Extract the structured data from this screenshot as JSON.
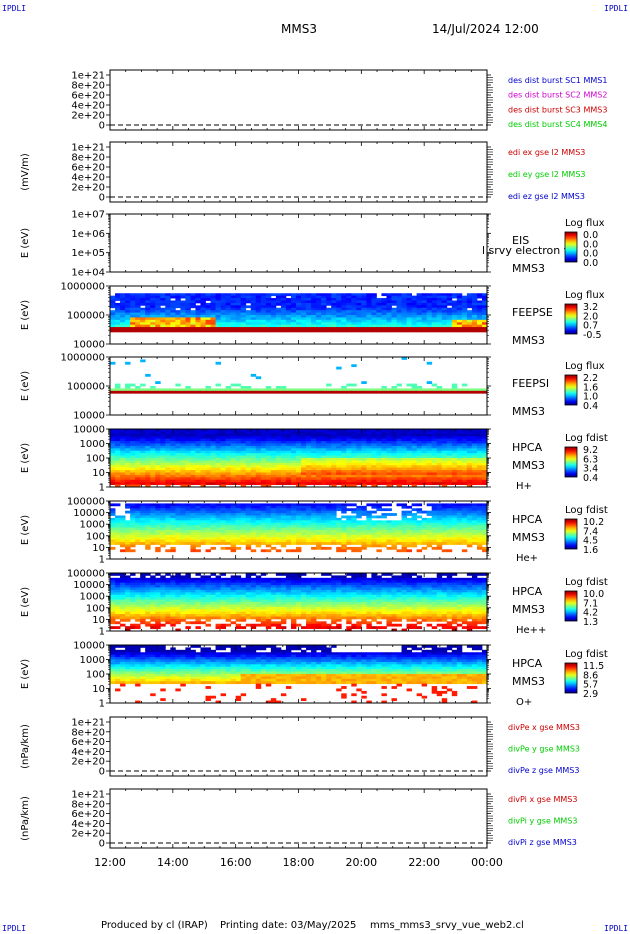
{
  "header": {
    "corner_labels": [
      "IPDLI",
      "IPDLI",
      "IPDLI",
      "IPDLI"
    ],
    "spacecraft": "MMS3",
    "datetime": "14/Jul/2024 12:00"
  },
  "footer": {
    "produced_by": "Produced by cl (IRAP)",
    "printing_date": "Printing date: 03/May/2025",
    "filename": "mms_mms3_srvy_vue_web2.cl"
  },
  "colors": {
    "blue": "#0000cc",
    "magenta": "#cc00cc",
    "red": "#cc0000",
    "green": "#00cc00"
  },
  "chart_data": {
    "type": "line",
    "x_ticks": [
      "12:00",
      "14:00",
      "16:00",
      "18:00",
      "20:00",
      "22:00",
      "00:00"
    ],
    "panels": [
      {
        "id": "des-dist",
        "type": "line",
        "ylabel": "",
        "yticks": [
          "1e+21",
          "8e+20",
          "6e+20",
          "4e+20",
          "2e+20",
          "0"
        ],
        "series": [
          {
            "name": "des dist burst SC1 MMS1",
            "color": "#0000cc"
          },
          {
            "name": "des dist burst SC2 MMS2",
            "color": "#cc00cc"
          },
          {
            "name": "des dist burst SC3 MMS3",
            "color": "#cc0000"
          },
          {
            "name": "des dist burst SC4 MMS4",
            "color": "#00cc00"
          }
        ]
      },
      {
        "id": "edi-e",
        "type": "line",
        "ylabel": "(mV/m)",
        "yticks": [
          "1e+21",
          "8e+20",
          "6e+20",
          "4e+20",
          "2e+20",
          "0"
        ],
        "series": [
          {
            "name": "edi ex gse l2 MMS3",
            "color": "#cc0000"
          },
          {
            "name": "edi ey gse l2 MMS3",
            "color": "#00cc00"
          },
          {
            "name": "edi ez gse l2 MMS3",
            "color": "#0000cc"
          }
        ]
      },
      {
        "id": "eis",
        "type": "heatmap",
        "ylabel": "E (eV)",
        "yticks": [
          "1e+07",
          "1e+06",
          "1e+05",
          "1e+04"
        ],
        "labels": [
          "EIS",
          "MMS3"
        ],
        "overlay": "l srvy electron to",
        "colorbar_title": "Log flux",
        "colorbar_ticks": [
          "0.0",
          "0.0",
          "0.0",
          "0.0"
        ]
      },
      {
        "id": "feepse",
        "type": "heatmap",
        "ylabel": "E (eV)",
        "yticks": [
          "1000000",
          "100000",
          "10000"
        ],
        "labels": [
          "FEEPSE",
          "MMS3"
        ],
        "colorbar_title": "Log flux",
        "colorbar_ticks": [
          "3.2",
          "2.0",
          "0.7",
          "-0.5"
        ]
      },
      {
        "id": "feepsi",
        "type": "heatmap",
        "ylabel": "E (eV)",
        "yticks": [
          "1000000",
          "100000",
          "10000"
        ],
        "labels": [
          "FEEPSI",
          "MMS3"
        ],
        "colorbar_title": "Log flux",
        "colorbar_ticks": [
          "2.2",
          "1.6",
          "1.0",
          "0.4"
        ]
      },
      {
        "id": "hpca-h",
        "type": "heatmap",
        "ylabel": "E (eV)",
        "yticks": [
          "10000",
          "1000",
          "100",
          "10",
          "1"
        ],
        "labels": [
          "HPCA",
          "MMS3",
          "H+"
        ],
        "colorbar_title": "Log fdist",
        "colorbar_ticks": [
          "9.2",
          "6.3",
          "3.4",
          "0.4"
        ]
      },
      {
        "id": "hpca-he",
        "type": "heatmap",
        "ylabel": "E (eV)",
        "yticks": [
          "100000",
          "10000",
          "1000",
          "100",
          "10",
          "1"
        ],
        "labels": [
          "HPCA",
          "MMS3",
          "He+"
        ],
        "colorbar_title": "Log fdist",
        "colorbar_ticks": [
          "10.2",
          "7.4",
          "4.5",
          "1.6"
        ]
      },
      {
        "id": "hpca-hepp",
        "type": "heatmap",
        "ylabel": "E (eV)",
        "yticks": [
          "100000",
          "10000",
          "1000",
          "100",
          "10",
          "1"
        ],
        "labels": [
          "HPCA",
          "MMS3",
          "He++"
        ],
        "colorbar_title": "Log fdist",
        "colorbar_ticks": [
          "10.0",
          "7.1",
          "4.2",
          "1.3"
        ]
      },
      {
        "id": "hpca-o",
        "type": "heatmap",
        "ylabel": "E (eV)",
        "yticks": [
          "10000",
          "1000",
          "100",
          "10",
          "1"
        ],
        "labels": [
          "HPCA",
          "MMS3",
          "O+"
        ],
        "colorbar_title": "Log fdist",
        "colorbar_ticks": [
          "11.5",
          "8.6",
          "5.7",
          "2.9"
        ]
      },
      {
        "id": "divpe",
        "type": "line",
        "ylabel": "(nPa/km)",
        "yticks": [
          "1e+21",
          "8e+20",
          "6e+20",
          "4e+20",
          "2e+20",
          "0"
        ],
        "series": [
          {
            "name": "divPe x gse MMS3",
            "color": "#cc0000"
          },
          {
            "name": "divPe y gse MMS3",
            "color": "#00cc00"
          },
          {
            "name": "divPe z gse MMS3",
            "color": "#0000cc"
          }
        ]
      },
      {
        "id": "divpi",
        "type": "line",
        "ylabel": "(nPa/km)",
        "yticks": [
          "1e+21",
          "8e+20",
          "6e+20",
          "4e+20",
          "2e+20",
          "0"
        ],
        "series": [
          {
            "name": "divPi x gse MMS3",
            "color": "#cc0000"
          },
          {
            "name": "divPi y gse MMS3",
            "color": "#00cc00"
          },
          {
            "name": "divPi z gse MMS3",
            "color": "#0000cc"
          }
        ]
      }
    ]
  }
}
